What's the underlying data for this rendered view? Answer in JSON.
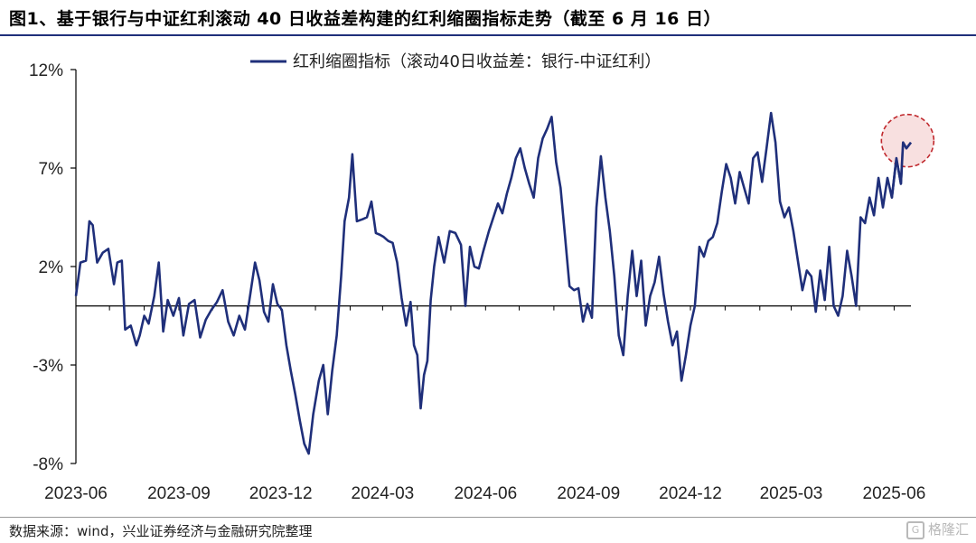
{
  "title": "图1、基于银行与中证红利滚动 40 日收益差构建的红利缩圈指标走势（截至 6 月 16 日）",
  "source": "数据来源：wind，兴业证券经济与金融研究院整理",
  "watermark": "格隆汇",
  "colors": {
    "series": "#1f2f7a",
    "highlight_fill": "#f5d5d5",
    "highlight_stroke": "#c0282d",
    "title_rule": "#1f2f7a"
  },
  "chart_data": {
    "type": "line",
    "title": "",
    "xlabel": "",
    "ylabel": "",
    "ylim": [
      -8,
      12
    ],
    "yticks": [
      12,
      7,
      2,
      -3,
      -8
    ],
    "ytick_labels": [
      "12%",
      "7%",
      "2%",
      "-3%",
      "-8%"
    ],
    "xtick_labels": [
      "2023-06",
      "2023-09",
      "2023-12",
      "2024-03",
      "2024-06",
      "2024-09",
      "2024-12",
      "2025-03",
      "2025-06"
    ],
    "x_range": [
      "2023-06-01",
      "2025-06-16"
    ],
    "zero_line": true,
    "grid": false,
    "legend_position": "top-center",
    "highlight": {
      "date": "2025-06-09",
      "value": 8.3,
      "shape": "circle"
    },
    "series": [
      {
        "name": "红利缩圈指标（滚动40日收益差：银行-中证红利）",
        "points": [
          [
            "2023-06-01",
            0.5
          ],
          [
            "2023-06-05",
            2.2
          ],
          [
            "2023-06-10",
            2.3
          ],
          [
            "2023-06-13",
            4.3
          ],
          [
            "2023-06-16",
            4.1
          ],
          [
            "2023-06-20",
            2.2
          ],
          [
            "2023-06-25",
            2.7
          ],
          [
            "2023-06-30",
            2.9
          ],
          [
            "2023-07-05",
            1.1
          ],
          [
            "2023-07-08",
            2.2
          ],
          [
            "2023-07-12",
            2.3
          ],
          [
            "2023-07-15",
            -1.2
          ],
          [
            "2023-07-20",
            -1.0
          ],
          [
            "2023-07-25",
            -2.0
          ],
          [
            "2023-07-28",
            -1.5
          ],
          [
            "2023-08-01",
            -0.5
          ],
          [
            "2023-08-05",
            -0.9
          ],
          [
            "2023-08-10",
            0.5
          ],
          [
            "2023-08-14",
            2.2
          ],
          [
            "2023-08-18",
            -1.3
          ],
          [
            "2023-08-22",
            0.3
          ],
          [
            "2023-08-27",
            -0.5
          ],
          [
            "2023-09-01",
            0.4
          ],
          [
            "2023-09-05",
            -1.5
          ],
          [
            "2023-09-10",
            0.1
          ],
          [
            "2023-09-15",
            0.3
          ],
          [
            "2023-09-20",
            -1.6
          ],
          [
            "2023-09-25",
            -0.7
          ],
          [
            "2023-09-30",
            -0.2
          ],
          [
            "2023-10-05",
            0.2
          ],
          [
            "2023-10-10",
            0.8
          ],
          [
            "2023-10-15",
            -0.8
          ],
          [
            "2023-10-20",
            -1.5
          ],
          [
            "2023-10-25",
            -0.5
          ],
          [
            "2023-10-30",
            -1.2
          ],
          [
            "2023-11-03",
            0.3
          ],
          [
            "2023-11-08",
            2.2
          ],
          [
            "2023-11-12",
            1.3
          ],
          [
            "2023-11-16",
            -0.3
          ],
          [
            "2023-11-20",
            -0.8
          ],
          [
            "2023-11-24",
            1.1
          ],
          [
            "2023-11-28",
            0.1
          ],
          [
            "2023-12-02",
            -0.2
          ],
          [
            "2023-12-06",
            -2.0
          ],
          [
            "2023-12-10",
            -3.3
          ],
          [
            "2023-12-14",
            -4.5
          ],
          [
            "2023-12-18",
            -5.8
          ],
          [
            "2023-12-22",
            -7.0
          ],
          [
            "2023-12-26",
            -7.5
          ],
          [
            "2023-12-30",
            -5.5
          ],
          [
            "2024-01-04",
            -3.8
          ],
          [
            "2024-01-08",
            -3.0
          ],
          [
            "2024-01-12",
            -5.5
          ],
          [
            "2024-01-16",
            -3.3
          ],
          [
            "2024-01-20",
            -1.5
          ],
          [
            "2024-01-24",
            1.5
          ],
          [
            "2024-01-27",
            4.3
          ],
          [
            "2024-01-31",
            5.5
          ],
          [
            "2024-02-03",
            7.7
          ],
          [
            "2024-02-07",
            4.3
          ],
          [
            "2024-02-12",
            4.4
          ],
          [
            "2024-02-16",
            4.5
          ],
          [
            "2024-02-20",
            5.3
          ],
          [
            "2024-02-24",
            3.7
          ],
          [
            "2024-02-28",
            3.6
          ],
          [
            "2024-03-02",
            3.5
          ],
          [
            "2024-03-06",
            3.3
          ],
          [
            "2024-03-10",
            3.2
          ],
          [
            "2024-03-14",
            2.2
          ],
          [
            "2024-03-18",
            0.4
          ],
          [
            "2024-03-22",
            -1.0
          ],
          [
            "2024-03-26",
            0.2
          ],
          [
            "2024-03-29",
            -2.0
          ],
          [
            "2024-04-01",
            -2.5
          ],
          [
            "2024-04-04",
            -5.2
          ],
          [
            "2024-04-07",
            -3.5
          ],
          [
            "2024-04-10",
            -2.8
          ],
          [
            "2024-04-13",
            0.3
          ],
          [
            "2024-04-16",
            2.0
          ],
          [
            "2024-04-20",
            3.5
          ],
          [
            "2024-04-25",
            2.2
          ],
          [
            "2024-04-30",
            3.8
          ],
          [
            "2024-05-05",
            3.7
          ],
          [
            "2024-05-10",
            3.1
          ],
          [
            "2024-05-14",
            0.0
          ],
          [
            "2024-05-18",
            3.0
          ],
          [
            "2024-05-22",
            2.0
          ],
          [
            "2024-05-26",
            1.9
          ],
          [
            "2024-05-30",
            2.8
          ],
          [
            "2024-06-04",
            3.8
          ],
          [
            "2024-06-08",
            4.5
          ],
          [
            "2024-06-12",
            5.2
          ],
          [
            "2024-06-16",
            4.7
          ],
          [
            "2024-06-20",
            5.7
          ],
          [
            "2024-06-24",
            6.5
          ],
          [
            "2024-06-28",
            7.5
          ],
          [
            "2024-07-02",
            8.0
          ],
          [
            "2024-07-06",
            7.0
          ],
          [
            "2024-07-10",
            6.2
          ],
          [
            "2024-07-14",
            5.5
          ],
          [
            "2024-07-18",
            7.5
          ],
          [
            "2024-07-22",
            8.5
          ],
          [
            "2024-07-26",
            9.0
          ],
          [
            "2024-07-30",
            9.6
          ],
          [
            "2024-08-03",
            7.3
          ],
          [
            "2024-08-07",
            6.0
          ],
          [
            "2024-08-11",
            3.5
          ],
          [
            "2024-08-15",
            1.0
          ],
          [
            "2024-08-19",
            0.8
          ],
          [
            "2024-08-23",
            0.9
          ],
          [
            "2024-08-27",
            -0.8
          ],
          [
            "2024-08-31",
            0.1
          ],
          [
            "2024-09-04",
            -0.6
          ],
          [
            "2024-09-08",
            5.0
          ],
          [
            "2024-09-12",
            7.6
          ],
          [
            "2024-09-16",
            5.5
          ],
          [
            "2024-09-20",
            3.8
          ],
          [
            "2024-09-24",
            1.5
          ],
          [
            "2024-09-28",
            -1.5
          ],
          [
            "2024-10-02",
            -2.5
          ],
          [
            "2024-10-06",
            0.5
          ],
          [
            "2024-10-10",
            2.8
          ],
          [
            "2024-10-14",
            0.5
          ],
          [
            "2024-10-18",
            2.3
          ],
          [
            "2024-10-22",
            -1.0
          ],
          [
            "2024-10-26",
            0.5
          ],
          [
            "2024-10-30",
            1.2
          ],
          [
            "2024-11-03",
            2.5
          ],
          [
            "2024-11-07",
            0.6
          ],
          [
            "2024-11-11",
            -0.8
          ],
          [
            "2024-11-15",
            -2.0
          ],
          [
            "2024-11-19",
            -1.3
          ],
          [
            "2024-11-23",
            -3.8
          ],
          [
            "2024-11-27",
            -2.5
          ],
          [
            "2024-12-01",
            -1.0
          ],
          [
            "2024-12-05",
            0.0
          ],
          [
            "2024-12-09",
            3.0
          ],
          [
            "2024-12-13",
            2.5
          ],
          [
            "2024-12-17",
            3.3
          ],
          [
            "2024-12-21",
            3.5
          ],
          [
            "2024-12-25",
            4.2
          ],
          [
            "2024-12-29",
            5.8
          ],
          [
            "2025-01-02",
            7.2
          ],
          [
            "2025-01-06",
            6.5
          ],
          [
            "2025-01-10",
            5.2
          ],
          [
            "2025-01-14",
            6.8
          ],
          [
            "2025-01-18",
            6.0
          ],
          [
            "2025-01-22",
            5.2
          ],
          [
            "2025-01-26",
            7.5
          ],
          [
            "2025-01-30",
            7.8
          ],
          [
            "2025-02-03",
            6.3
          ],
          [
            "2025-02-07",
            8.0
          ],
          [
            "2025-02-11",
            9.8
          ],
          [
            "2025-02-15",
            8.3
          ],
          [
            "2025-02-19",
            5.3
          ],
          [
            "2025-02-23",
            4.5
          ],
          [
            "2025-02-27",
            5.0
          ],
          [
            "2025-03-03",
            3.8
          ],
          [
            "2025-03-07",
            2.3
          ],
          [
            "2025-03-11",
            0.8
          ],
          [
            "2025-03-15",
            1.8
          ],
          [
            "2025-03-19",
            1.5
          ],
          [
            "2025-03-23",
            -0.3
          ],
          [
            "2025-03-27",
            1.8
          ],
          [
            "2025-03-31",
            0.3
          ],
          [
            "2025-04-04",
            3.0
          ],
          [
            "2025-04-08",
            0.0
          ],
          [
            "2025-04-12",
            -0.5
          ],
          [
            "2025-04-16",
            0.5
          ],
          [
            "2025-04-20",
            2.8
          ],
          [
            "2025-04-24",
            1.5
          ],
          [
            "2025-04-28",
            0.0
          ],
          [
            "2025-05-02",
            4.5
          ],
          [
            "2025-05-06",
            4.2
          ],
          [
            "2025-05-10",
            5.5
          ],
          [
            "2025-05-14",
            4.6
          ],
          [
            "2025-05-18",
            6.5
          ],
          [
            "2025-05-22",
            5.0
          ],
          [
            "2025-05-26",
            6.5
          ],
          [
            "2025-05-30",
            5.5
          ],
          [
            "2025-06-03",
            7.5
          ],
          [
            "2025-06-07",
            6.2
          ],
          [
            "2025-06-09",
            8.3
          ],
          [
            "2025-06-12",
            8.0
          ],
          [
            "2025-06-16",
            8.3
          ]
        ]
      }
    ]
  }
}
